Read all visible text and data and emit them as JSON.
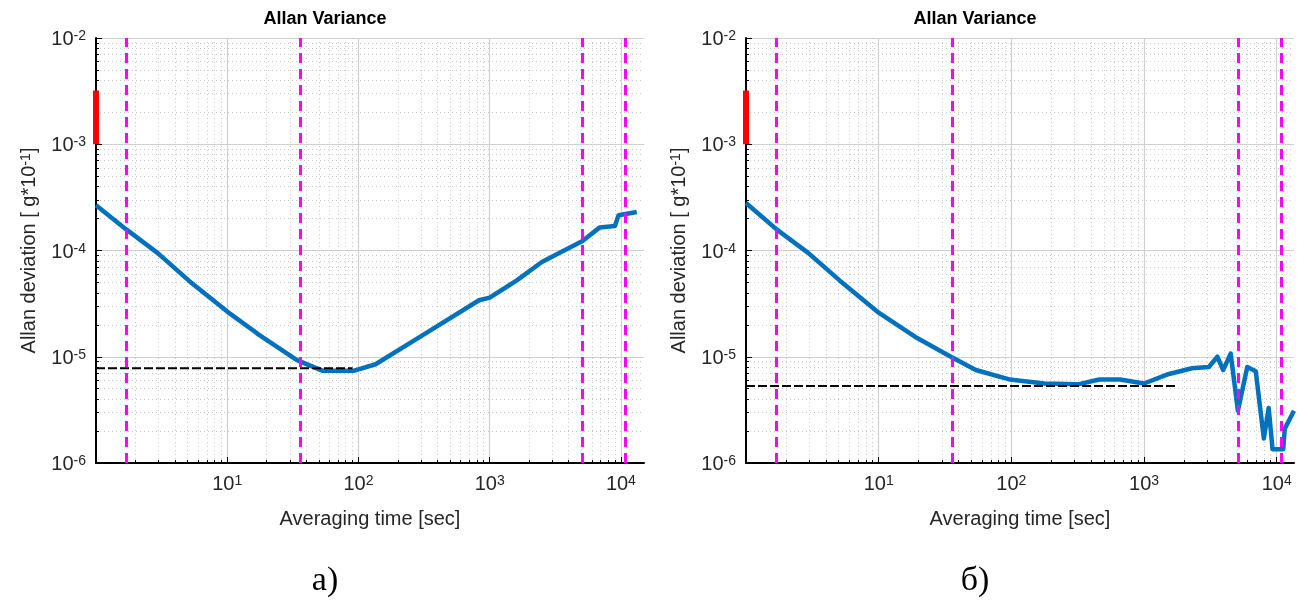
{
  "chart_data": [
    {
      "type": "line",
      "title": "Allan Variance",
      "xlabel": "Averaging time [sec]",
      "ylabel": "Allan deviation [ g*10$^{-1}$]",
      "annotations": [
        "a)"
      ],
      "log": "xy",
      "grid": true,
      "marker": "none",
      "xlim": [
        1,
        15000
      ],
      "xticks": [
        {
          "value": 10,
          "label": "10$^{1}$"
        },
        {
          "value": 100,
          "label": "10$^{2}$"
        },
        {
          "value": 1000,
          "label": "10$^{3}$"
        },
        {
          "value": 10000,
          "label": "10$^{4}$"
        }
      ],
      "ylim": [
        1e-06,
        0.01
      ],
      "yticks": [
        {
          "value": 1e-06,
          "label": "10$^{-6}$"
        },
        {
          "value": 1e-05,
          "label": "10$^{-5}$"
        },
        {
          "value": 0.0001,
          "label": "10$^{-4}$"
        },
        {
          "value": 0.001,
          "label": "10$^{-3}$"
        },
        {
          "value": 0.01,
          "label": "10$^{-2}$"
        }
      ],
      "series": [
        {
          "color": "#0072bd",
          "line_style": "solid",
          "x": [
            1,
            1.7,
            2.94,
            5.1,
            10,
            17.6,
            34,
            53,
            93,
            135,
            280,
            830,
            1000,
            1600,
            2500,
            5100,
            6900,
            9000,
            9600,
            13200
          ],
          "values": [
            0.000266,
            0.000158,
            9.5e-05,
            5.2e-05,
            2.66e-05,
            1.6e-05,
            9.3e-06,
            7.4e-06,
            7.4e-06,
            8.5e-06,
            1.48e-05,
            3.4e-05,
            3.6e-05,
            5.2e-05,
            7.8e-05,
            0.000123,
            0.000165,
            0.00017,
            0.000215,
            0.00023
          ]
        },
        {
          "color": "#000000",
          "line_style": "dashed",
          "x": [
            1,
            90
          ],
          "values": [
            7.8e-06,
            7.8e-06
          ]
        },
        {
          "color": "#ff0000",
          "line_style": "solid",
          "x": [
            1,
            1
          ],
          "values": [
            0.001,
            0.0032
          ]
        }
      ],
      "ref_lines": [
        {
          "axis": "x",
          "value": 1.7,
          "color": "#ff00ff",
          "line_style": "dashed"
        },
        {
          "axis": "x",
          "value": 36,
          "color": "#ff00ff",
          "line_style": "dashed"
        },
        {
          "axis": "x",
          "value": 5100,
          "color": "#ff00ff",
          "line_style": "dashed"
        },
        {
          "axis": "x",
          "value": 10800,
          "color": "#ff00ff",
          "line_style": "dashed"
        }
      ]
    },
    {
      "type": "line",
      "title": "Allan Variance",
      "xlabel": "Averaging time [sec]",
      "ylabel": "Allan deviation [ g*10$^{-1}$]",
      "annotations": [
        "б)"
      ],
      "log": "xy",
      "grid": true,
      "marker": "none",
      "xlim": [
        1,
        13500
      ],
      "xticks": [
        {
          "value": 10,
          "label": "10$^{1}$"
        },
        {
          "value": 100,
          "label": "10$^{2}$"
        },
        {
          "value": 1000,
          "label": "10$^{3}$"
        },
        {
          "value": 10000,
          "label": "10$^{4}$"
        }
      ],
      "ylim": [
        1e-06,
        0.01
      ],
      "yticks": [
        {
          "value": 1e-06,
          "label": "10$^{-6}$"
        },
        {
          "value": 1e-05,
          "label": "10$^{-5}$"
        },
        {
          "value": 0.0001,
          "label": "10$^{-4}$"
        },
        {
          "value": 0.001,
          "label": "10$^{-3}$"
        },
        {
          "value": 0.01,
          "label": "10$^{-2}$"
        }
      ],
      "series": [
        {
          "color": "#0072bd",
          "line_style": "solid",
          "x": [
            1,
            1.7,
            2.94,
            5.1,
            10,
            19.5,
            35,
            54,
            98,
            178,
            316,
            460,
            660,
            1000,
            1490,
            2300,
            3080,
            3570,
            3950,
            4500,
            5100,
            6000,
            6950,
            8000,
            8700,
            9300,
            11200,
            11500,
            13500
          ],
          "values": [
            0.00028,
            0.000158,
            9.5e-05,
            5.2e-05,
            2.6e-05,
            1.5e-05,
            1e-05,
            7.5e-06,
            6.1e-06,
            5.6e-06,
            5.5e-06,
            6.1e-06,
            6.1e-06,
            5.6e-06,
            6.8e-06,
            7.8e-06,
            8e-06,
            1e-05,
            7.5e-06,
            1.07e-05,
            3.1e-06,
            8e-06,
            7.3e-06,
            1.7e-06,
            3.3e-06,
            1.35e-06,
            1.35e-06,
            2.1e-06,
            3.1e-06
          ]
        },
        {
          "color": "#000000",
          "line_style": "dashed",
          "x": [
            1,
            1800
          ],
          "values": [
            5.3e-06,
            5.3e-06
          ]
        },
        {
          "color": "#ff0000",
          "line_style": "solid",
          "x": [
            1,
            1
          ],
          "values": [
            0.001,
            0.0032
          ]
        }
      ],
      "ref_lines": [
        {
          "axis": "x",
          "value": 1.7,
          "color": "#ff00ff",
          "line_style": "dashed"
        },
        {
          "axis": "x",
          "value": 36,
          "color": "#ff00ff",
          "line_style": "dashed"
        },
        {
          "axis": "x",
          "value": 5100,
          "color": "#ff00ff",
          "line_style": "dashed"
        },
        {
          "axis": "x",
          "value": 10800,
          "color": "#ff00ff",
          "line_style": "dashed"
        }
      ]
    }
  ]
}
